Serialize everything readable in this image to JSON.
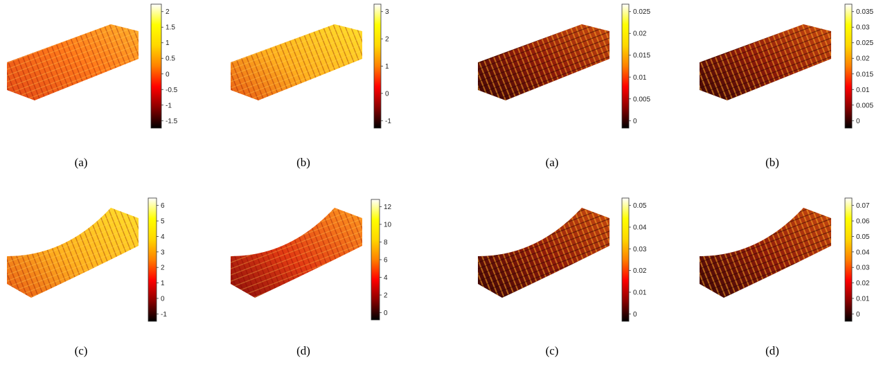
{
  "colormap": [
    "#000000",
    "#8b0000",
    "#ff0000",
    "#ff8000",
    "#ffd700",
    "#ffff00",
    "#ffffff"
  ],
  "panels": [
    {
      "label": "(a)",
      "colorbar_ticks": [
        "2",
        "1.5",
        "1",
        "0.5",
        "0",
        "-0.5",
        "-1",
        "-1.5"
      ],
      "shape": "mesh",
      "tint": "orange-red"
    },
    {
      "label": "(b)",
      "colorbar_ticks": [
        "3",
        "2",
        "1",
        "0",
        "-1"
      ],
      "shape": "mesh",
      "tint": "yellow-orange"
    },
    {
      "label": "(a)",
      "colorbar_ticks": [
        "0.025",
        "0.02",
        "0.015",
        "0.01",
        "0.005",
        "0"
      ],
      "shape": "lattice",
      "tint": "dark-red"
    },
    {
      "label": "(b)",
      "colorbar_ticks": [
        "0.035",
        "0.03",
        "0.025",
        "0.02",
        "0.015",
        "0.01",
        "0.005",
        "0"
      ],
      "shape": "lattice",
      "tint": "dark-red"
    },
    {
      "label": "(c)",
      "colorbar_ticks": [
        "6",
        "5",
        "4",
        "3",
        "2",
        "1",
        "0",
        "-1"
      ],
      "shape": "bent-mesh",
      "tint": "yellow-orange"
    },
    {
      "label": "(d)",
      "colorbar_ticks": [
        "12",
        "10",
        "8",
        "6",
        "4",
        "2",
        "0"
      ],
      "shape": "bent-mesh",
      "tint": "red-orange"
    },
    {
      "label": "(c)",
      "colorbar_ticks": [
        "0.05",
        "0.04",
        "0.03",
        "0.02",
        "0.01",
        "0"
      ],
      "shape": "bent-lattice",
      "tint": "dark-red"
    },
    {
      "label": "(d)",
      "colorbar_ticks": [
        "0.07",
        "0.06",
        "0.05",
        "0.04",
        "0.03",
        "0.02",
        "0.01",
        "0"
      ],
      "shape": "bent-lattice",
      "tint": "dark-red"
    }
  ]
}
